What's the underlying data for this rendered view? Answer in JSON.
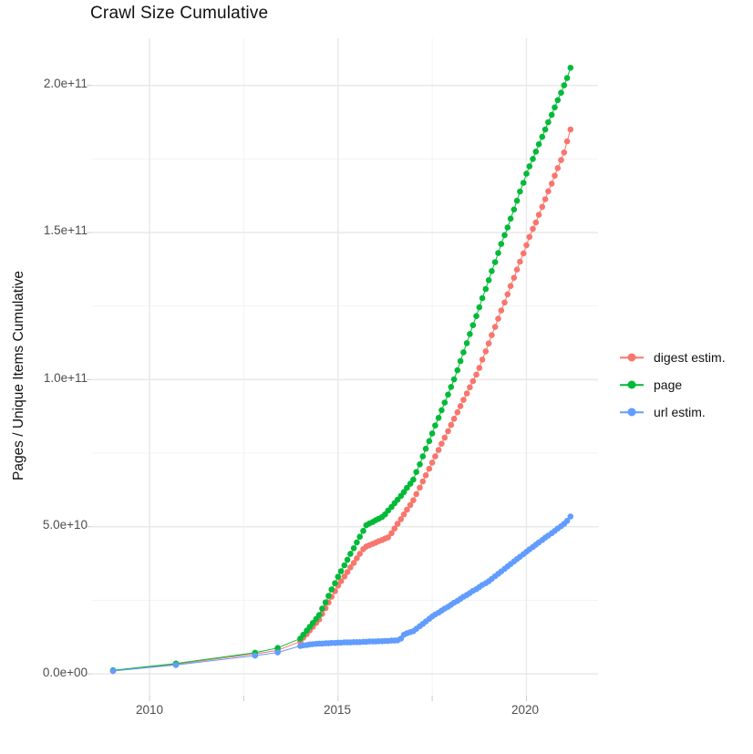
{
  "figure": {
    "background": "#ffffff"
  },
  "chart_data": {
    "type": "line",
    "subtype": "scatter-line (points with connecting lines, ggplot style)",
    "title": "Crawl Size Cumulative",
    "xlabel": "",
    "ylabel": "Pages / Unique Items Cumulative",
    "x_tick_labels": [
      "2010",
      "2015",
      "2020"
    ],
    "x_tick_values": [
      2010,
      2015,
      2020
    ],
    "x_minor_tick_values": [
      2012.5,
      2017.5
    ],
    "y_tick_labels": [
      "0.0e+00",
      "5.0e+10",
      "1.0e+11",
      "1.5e+11",
      "2.0e+11"
    ],
    "y_tick_values_e10": [
      0,
      5,
      10,
      15,
      20
    ],
    "y_minor_tick_values_e10": [
      2.5,
      7.5,
      12.5,
      17.5
    ],
    "xlim": [
      2008.45,
      2021.9
    ],
    "ylim_e10": [
      -0.74,
      21.6
    ],
    "value_unit": "1e10",
    "grid": "major and minor horizontal+vertical, light gray on white",
    "legend_position": "right",
    "colors": {
      "digest": "#F8766D",
      "page": "#00BA38",
      "url": "#619CFF",
      "grid_major": "#e8e8e8",
      "grid_minor": "#f3f3f3",
      "tick": "#c9c9c9",
      "tick_text": "#4d4d4d"
    },
    "series": [
      {
        "name": "digest estim.",
        "color": "#F8766D",
        "points": [
          [
            2009.03,
            0.1
          ],
          [
            2010.7,
            0.33
          ],
          [
            2012.8,
            0.68
          ],
          [
            2013.4,
            0.8
          ],
          [
            2014.0,
            1.1
          ],
          [
            2014.08,
            1.23
          ],
          [
            2014.17,
            1.35
          ],
          [
            2014.25,
            1.48
          ],
          [
            2014.33,
            1.6
          ],
          [
            2014.42,
            1.73
          ],
          [
            2014.5,
            1.85
          ],
          [
            2014.58,
            2.04
          ],
          [
            2014.67,
            2.23
          ],
          [
            2014.75,
            2.43
          ],
          [
            2014.83,
            2.62
          ],
          [
            2014.92,
            2.81
          ],
          [
            2015.0,
            3.0
          ],
          [
            2015.08,
            3.15
          ],
          [
            2015.17,
            3.31
          ],
          [
            2015.25,
            3.46
          ],
          [
            2015.33,
            3.62
          ],
          [
            2015.42,
            3.77
          ],
          [
            2015.5,
            3.93
          ],
          [
            2015.58,
            4.08
          ],
          [
            2015.67,
            4.24
          ],
          [
            2015.75,
            4.33
          ],
          [
            2015.83,
            4.37
          ],
          [
            2015.92,
            4.42
          ],
          [
            2016.0,
            4.46
          ],
          [
            2016.08,
            4.51
          ],
          [
            2016.17,
            4.55
          ],
          [
            2016.25,
            4.6
          ],
          [
            2016.33,
            4.64
          ],
          [
            2016.42,
            4.78
          ],
          [
            2016.5,
            4.94
          ],
          [
            2016.58,
            5.1
          ],
          [
            2016.67,
            5.26
          ],
          [
            2016.75,
            5.42
          ],
          [
            2016.83,
            5.58
          ],
          [
            2016.92,
            5.74
          ],
          [
            2017.0,
            5.9
          ],
          [
            2017.08,
            6.11
          ],
          [
            2017.17,
            6.33
          ],
          [
            2017.25,
            6.54
          ],
          [
            2017.33,
            6.75
          ],
          [
            2017.42,
            6.97
          ],
          [
            2017.5,
            7.18
          ],
          [
            2017.58,
            7.39
          ],
          [
            2017.67,
            7.61
          ],
          [
            2017.75,
            7.82
          ],
          [
            2017.83,
            8.03
          ],
          [
            2017.92,
            8.25
          ],
          [
            2018.0,
            8.46
          ],
          [
            2018.08,
            8.67
          ],
          [
            2018.17,
            8.89
          ],
          [
            2018.25,
            9.1
          ],
          [
            2018.33,
            9.31
          ],
          [
            2018.42,
            9.53
          ],
          [
            2018.5,
            9.74
          ],
          [
            2018.58,
            9.95
          ],
          [
            2018.67,
            10.17
          ],
          [
            2018.75,
            10.4
          ],
          [
            2018.83,
            10.68
          ],
          [
            2018.92,
            10.96
          ],
          [
            2019.0,
            11.23
          ],
          [
            2019.08,
            11.51
          ],
          [
            2019.17,
            11.79
          ],
          [
            2019.25,
            12.07
          ],
          [
            2019.33,
            12.35
          ],
          [
            2019.42,
            12.62
          ],
          [
            2019.5,
            12.9
          ],
          [
            2019.58,
            13.18
          ],
          [
            2019.67,
            13.46
          ],
          [
            2019.75,
            13.74
          ],
          [
            2019.83,
            14.01
          ],
          [
            2019.92,
            14.29
          ],
          [
            2020.0,
            14.57
          ],
          [
            2020.08,
            14.85
          ],
          [
            2020.17,
            15.12
          ],
          [
            2020.25,
            15.34
          ],
          [
            2020.33,
            15.6
          ],
          [
            2020.42,
            15.87
          ],
          [
            2020.5,
            16.13
          ],
          [
            2020.58,
            16.4
          ],
          [
            2020.67,
            16.66
          ],
          [
            2020.75,
            16.93
          ],
          [
            2020.83,
            17.19
          ],
          [
            2020.92,
            17.46
          ],
          [
            2021.0,
            17.72
          ],
          [
            2021.08,
            18.1
          ],
          [
            2021.17,
            18.5
          ]
        ]
      },
      {
        "name": "page",
        "color": "#00BA38",
        "points": [
          [
            2009.03,
            0.12
          ],
          [
            2010.7,
            0.35
          ],
          [
            2012.8,
            0.72
          ],
          [
            2013.4,
            0.88
          ],
          [
            2014.0,
            1.2
          ],
          [
            2014.08,
            1.33
          ],
          [
            2014.17,
            1.47
          ],
          [
            2014.25,
            1.6
          ],
          [
            2014.33,
            1.73
          ],
          [
            2014.42,
            1.87
          ],
          [
            2014.5,
            2.0
          ],
          [
            2014.58,
            2.22
          ],
          [
            2014.67,
            2.43
          ],
          [
            2014.75,
            2.65
          ],
          [
            2014.83,
            2.87
          ],
          [
            2014.92,
            3.08
          ],
          [
            2015.0,
            3.3
          ],
          [
            2015.08,
            3.49
          ],
          [
            2015.17,
            3.69
          ],
          [
            2015.25,
            3.88
          ],
          [
            2015.33,
            4.08
          ],
          [
            2015.42,
            4.27
          ],
          [
            2015.5,
            4.47
          ],
          [
            2015.58,
            4.66
          ],
          [
            2015.67,
            4.86
          ],
          [
            2015.75,
            5.05
          ],
          [
            2015.83,
            5.11
          ],
          [
            2015.92,
            5.16
          ],
          [
            2016.0,
            5.22
          ],
          [
            2016.08,
            5.27
          ],
          [
            2016.17,
            5.33
          ],
          [
            2016.25,
            5.42
          ],
          [
            2016.33,
            5.55
          ],
          [
            2016.42,
            5.67
          ],
          [
            2016.5,
            5.8
          ],
          [
            2016.58,
            5.92
          ],
          [
            2016.67,
            6.05
          ],
          [
            2016.75,
            6.18
          ],
          [
            2016.83,
            6.32
          ],
          [
            2016.92,
            6.46
          ],
          [
            2017.0,
            6.6
          ],
          [
            2017.08,
            6.86
          ],
          [
            2017.17,
            7.12
          ],
          [
            2017.25,
            7.39
          ],
          [
            2017.33,
            7.65
          ],
          [
            2017.42,
            7.91
          ],
          [
            2017.5,
            8.17
          ],
          [
            2017.58,
            8.44
          ],
          [
            2017.67,
            8.7
          ],
          [
            2017.75,
            8.96
          ],
          [
            2017.83,
            9.22
          ],
          [
            2017.92,
            9.49
          ],
          [
            2018.0,
            9.75
          ],
          [
            2018.08,
            10.01
          ],
          [
            2018.17,
            10.32
          ],
          [
            2018.25,
            10.63
          ],
          [
            2018.33,
            10.93
          ],
          [
            2018.42,
            11.24
          ],
          [
            2018.5,
            11.55
          ],
          [
            2018.58,
            11.85
          ],
          [
            2018.67,
            12.16
          ],
          [
            2018.75,
            12.46
          ],
          [
            2018.83,
            12.77
          ],
          [
            2018.92,
            13.08
          ],
          [
            2019.0,
            13.38
          ],
          [
            2019.08,
            13.69
          ],
          [
            2019.17,
            13.99
          ],
          [
            2019.25,
            14.3
          ],
          [
            2019.33,
            14.61
          ],
          [
            2019.42,
            14.91
          ],
          [
            2019.5,
            15.17
          ],
          [
            2019.58,
            15.47
          ],
          [
            2019.67,
            15.78
          ],
          [
            2019.75,
            16.08
          ],
          [
            2019.83,
            16.39
          ],
          [
            2019.92,
            16.69
          ],
          [
            2020.0,
            17.0
          ],
          [
            2020.08,
            17.25
          ],
          [
            2020.17,
            17.5
          ],
          [
            2020.25,
            17.75
          ],
          [
            2020.33,
            18.0
          ],
          [
            2020.42,
            18.25
          ],
          [
            2020.5,
            18.5
          ],
          [
            2020.58,
            18.75
          ],
          [
            2020.67,
            19.0
          ],
          [
            2020.75,
            19.25
          ],
          [
            2020.83,
            19.5
          ],
          [
            2020.92,
            19.75
          ],
          [
            2021.0,
            20.0
          ],
          [
            2021.08,
            20.25
          ],
          [
            2021.17,
            20.6
          ]
        ]
      },
      {
        "name": "url estim.",
        "color": "#619CFF",
        "points": [
          [
            2009.03,
            0.1
          ],
          [
            2010.7,
            0.3
          ],
          [
            2012.8,
            0.62
          ],
          [
            2013.4,
            0.73
          ],
          [
            2014.0,
            0.95
          ],
          [
            2014.08,
            0.97
          ],
          [
            2014.17,
            0.98
          ],
          [
            2014.25,
            1.0
          ],
          [
            2014.33,
            1.01
          ],
          [
            2014.42,
            1.02
          ],
          [
            2014.5,
            1.03
          ],
          [
            2014.58,
            1.03
          ],
          [
            2014.67,
            1.04
          ],
          [
            2014.75,
            1.04
          ],
          [
            2014.83,
            1.05
          ],
          [
            2014.92,
            1.05
          ],
          [
            2015.0,
            1.06
          ],
          [
            2015.08,
            1.06
          ],
          [
            2015.17,
            1.07
          ],
          [
            2015.25,
            1.07
          ],
          [
            2015.33,
            1.07
          ],
          [
            2015.42,
            1.08
          ],
          [
            2015.5,
            1.08
          ],
          [
            2015.58,
            1.08
          ],
          [
            2015.67,
            1.09
          ],
          [
            2015.75,
            1.09
          ],
          [
            2015.83,
            1.1
          ],
          [
            2015.92,
            1.1
          ],
          [
            2016.0,
            1.1
          ],
          [
            2016.08,
            1.11
          ],
          [
            2016.17,
            1.11
          ],
          [
            2016.25,
            1.12
          ],
          [
            2016.33,
            1.12
          ],
          [
            2016.42,
            1.13
          ],
          [
            2016.5,
            1.13
          ],
          [
            2016.58,
            1.14
          ],
          [
            2016.67,
            1.2
          ],
          [
            2016.75,
            1.33
          ],
          [
            2016.83,
            1.38
          ],
          [
            2016.92,
            1.42
          ],
          [
            2017.0,
            1.45
          ],
          [
            2017.08,
            1.53
          ],
          [
            2017.17,
            1.62
          ],
          [
            2017.25,
            1.7
          ],
          [
            2017.33,
            1.78
          ],
          [
            2017.42,
            1.87
          ],
          [
            2017.5,
            1.95
          ],
          [
            2017.58,
            2.02
          ],
          [
            2017.67,
            2.08
          ],
          [
            2017.75,
            2.15
          ],
          [
            2017.83,
            2.22
          ],
          [
            2017.92,
            2.28
          ],
          [
            2018.0,
            2.35
          ],
          [
            2018.08,
            2.42
          ],
          [
            2018.17,
            2.48
          ],
          [
            2018.25,
            2.55
          ],
          [
            2018.33,
            2.62
          ],
          [
            2018.42,
            2.68
          ],
          [
            2018.5,
            2.75
          ],
          [
            2018.58,
            2.82
          ],
          [
            2018.67,
            2.88
          ],
          [
            2018.75,
            2.95
          ],
          [
            2018.83,
            3.02
          ],
          [
            2018.92,
            3.08
          ],
          [
            2019.0,
            3.15
          ],
          [
            2019.08,
            3.23
          ],
          [
            2019.17,
            3.32
          ],
          [
            2019.25,
            3.4
          ],
          [
            2019.33,
            3.48
          ],
          [
            2019.42,
            3.57
          ],
          [
            2019.5,
            3.65
          ],
          [
            2019.58,
            3.73
          ],
          [
            2019.67,
            3.82
          ],
          [
            2019.75,
            3.9
          ],
          [
            2019.83,
            3.98
          ],
          [
            2019.92,
            4.07
          ],
          [
            2020.0,
            4.15
          ],
          [
            2020.08,
            4.23
          ],
          [
            2020.17,
            4.31
          ],
          [
            2020.25,
            4.39
          ],
          [
            2020.33,
            4.47
          ],
          [
            2020.42,
            4.55
          ],
          [
            2020.5,
            4.63
          ],
          [
            2020.58,
            4.7
          ],
          [
            2020.67,
            4.78
          ],
          [
            2020.75,
            4.86
          ],
          [
            2020.83,
            4.94
          ],
          [
            2020.92,
            5.02
          ],
          [
            2021.0,
            5.1
          ],
          [
            2021.08,
            5.2
          ],
          [
            2021.17,
            5.35
          ]
        ]
      }
    ]
  }
}
